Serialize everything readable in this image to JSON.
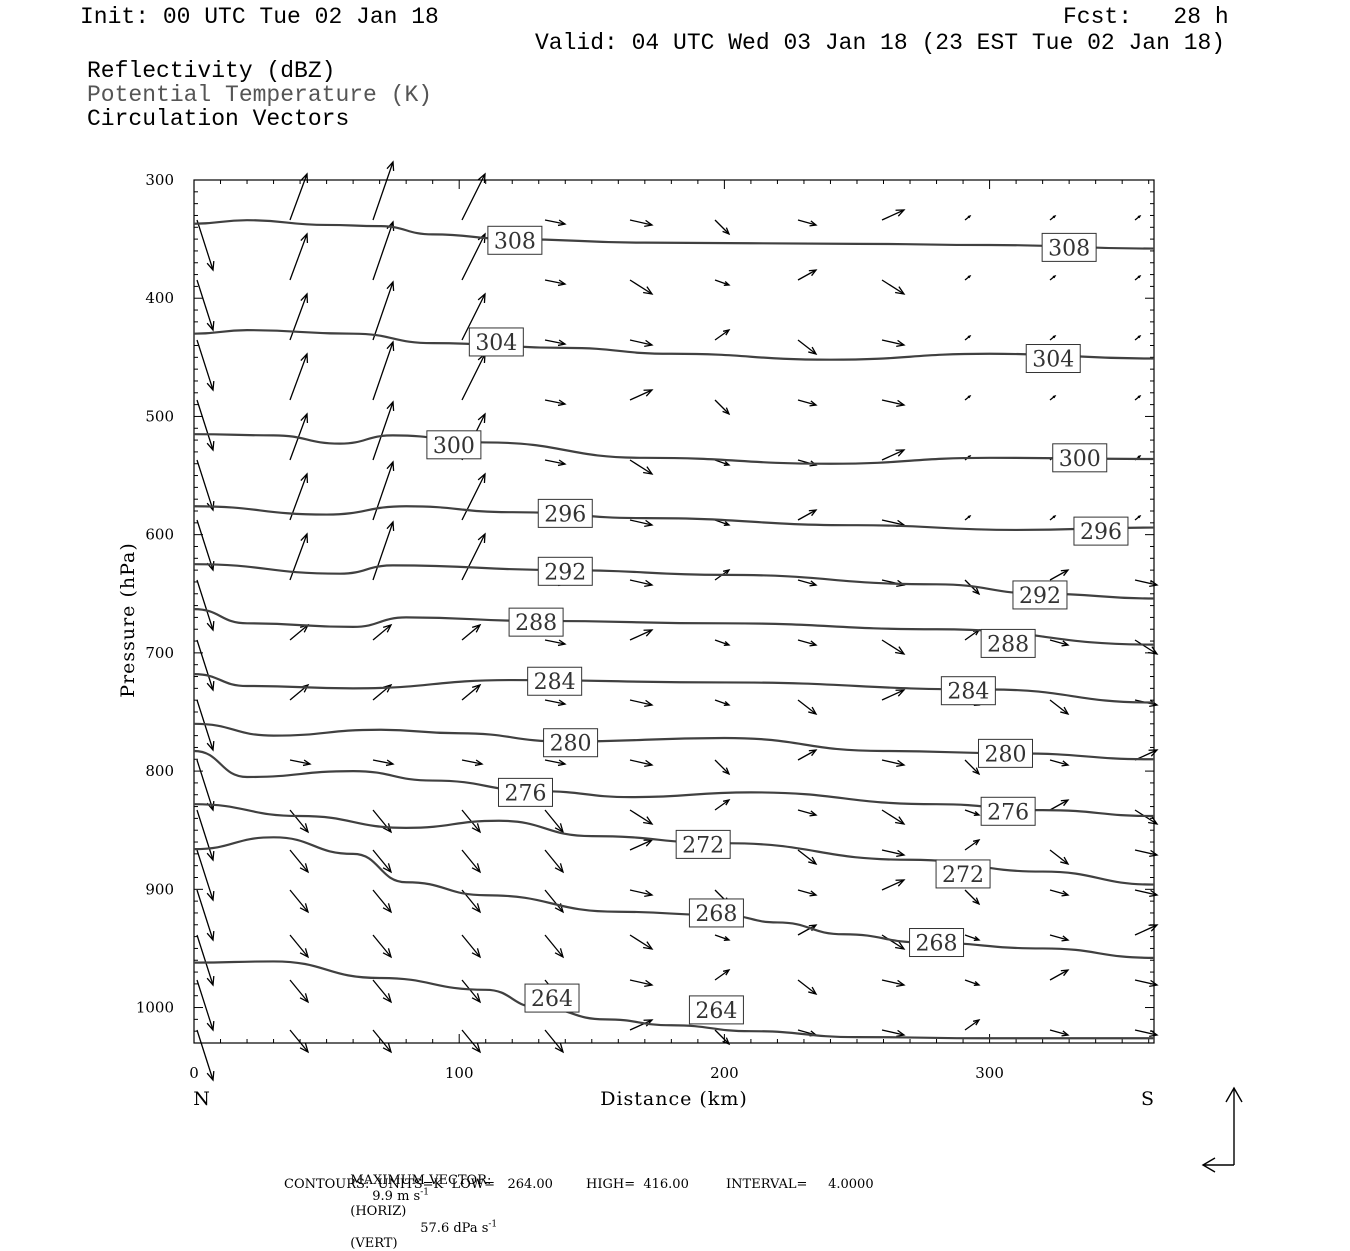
{
  "header": {
    "init": "Init: 00 UTC Tue 02 Jan 18",
    "fcst": "Fcst:   28 h",
    "valid": "Valid: 04 UTC Wed 03 Jan 18 (23 EST Tue 02 Jan 18)",
    "legend": [
      "Reflectivity (dBZ)",
      "Potential Temperature (K)",
      "Circulation Vectors"
    ]
  },
  "footer": {
    "max_vector_label": "MAXIMUM VECTOR:",
    "max_vector_horiz": "9.9 m s",
    "horiz_unit": "(HORIZ)",
    "max_vector_vert": "57.6 dPa s",
    "vert_unit": "(VERT)",
    "contours": "CONTOURS:  UNITS=K  LOW=   264.00        HIGH=  416.00         INTERVAL=     4.0000"
  },
  "colors": {
    "contour": "#404040",
    "vector": "#000000",
    "background": "#ffffff"
  },
  "chart_data": {
    "type": "cross-section contour",
    "xlabel": "Distance (km)",
    "ylabel": "Pressure (hPa)",
    "xlim": [
      0,
      362
    ],
    "ylim": [
      1030,
      300
    ],
    "x_ticks": [
      0,
      100,
      200,
      300
    ],
    "y_ticks": [
      300,
      400,
      500,
      600,
      700,
      800,
      900,
      1000
    ],
    "x_end_labels": {
      "left": "N",
      "right": "S"
    },
    "contour_levels": [
      308,
      304,
      300,
      296,
      292,
      288,
      284,
      280,
      276,
      272,
      268,
      264
    ],
    "contours": [
      {
        "level": 308,
        "points": [
          [
            0,
            337
          ],
          [
            20,
            334
          ],
          [
            50,
            338
          ],
          [
            70,
            339
          ],
          [
            90,
            346
          ],
          [
            120,
            350
          ],
          [
            170,
            353
          ],
          [
            250,
            354
          ],
          [
            300,
            355
          ],
          [
            362,
            358
          ]
        ],
        "labels": [
          [
            121,
            351
          ],
          [
            330,
            357
          ]
        ]
      },
      {
        "level": 304,
        "points": [
          [
            0,
            430
          ],
          [
            20,
            427
          ],
          [
            60,
            430
          ],
          [
            90,
            438
          ],
          [
            140,
            442
          ],
          [
            180,
            447
          ],
          [
            240,
            452
          ],
          [
            300,
            447
          ],
          [
            362,
            451
          ]
        ],
        "labels": [
          [
            114,
            437
          ],
          [
            324,
            451
          ]
        ]
      },
      {
        "level": 300,
        "points": [
          [
            0,
            515
          ],
          [
            30,
            516
          ],
          [
            55,
            523
          ],
          [
            75,
            516
          ],
          [
            110,
            522
          ],
          [
            170,
            535
          ],
          [
            240,
            540
          ],
          [
            300,
            535
          ],
          [
            362,
            536
          ]
        ],
        "labels": [
          [
            98,
            524
          ],
          [
            334,
            535
          ]
        ]
      },
      {
        "level": 296,
        "points": [
          [
            0,
            576
          ],
          [
            50,
            583
          ],
          [
            80,
            576
          ],
          [
            120,
            581
          ],
          [
            170,
            586
          ],
          [
            250,
            592
          ],
          [
            310,
            596
          ],
          [
            362,
            594
          ]
        ],
        "labels": [
          [
            140,
            582
          ],
          [
            342,
            597
          ]
        ]
      },
      {
        "level": 292,
        "points": [
          [
            0,
            625
          ],
          [
            55,
            633
          ],
          [
            75,
            626
          ],
          [
            140,
            630
          ],
          [
            200,
            634
          ],
          [
            280,
            642
          ],
          [
            320,
            650
          ],
          [
            362,
            654
          ]
        ],
        "labels": [
          [
            140,
            631
          ],
          [
            319,
            651
          ]
        ]
      },
      {
        "level": 288,
        "points": [
          [
            0,
            663
          ],
          [
            20,
            675
          ],
          [
            60,
            678
          ],
          [
            80,
            670
          ],
          [
            130,
            673
          ],
          [
            200,
            675
          ],
          [
            280,
            680
          ],
          [
            362,
            693
          ]
        ],
        "labels": [
          [
            129,
            674
          ],
          [
            307,
            692
          ]
        ]
      },
      {
        "level": 284,
        "points": [
          [
            0,
            718
          ],
          [
            20,
            728
          ],
          [
            60,
            730
          ],
          [
            120,
            723
          ],
          [
            200,
            725
          ],
          [
            300,
            731
          ],
          [
            362,
            742
          ]
        ],
        "labels": [
          [
            136,
            724
          ],
          [
            292,
            732
          ]
        ]
      },
      {
        "level": 280,
        "points": [
          [
            0,
            760
          ],
          [
            30,
            770
          ],
          [
            70,
            765
          ],
          [
            100,
            768
          ],
          [
            140,
            775
          ],
          [
            200,
            772
          ],
          [
            260,
            783
          ],
          [
            310,
            785
          ],
          [
            362,
            790
          ]
        ],
        "labels": [
          [
            142,
            776
          ],
          [
            306,
            785
          ]
        ]
      },
      {
        "level": 276,
        "points": [
          [
            0,
            783
          ],
          [
            20,
            805
          ],
          [
            60,
            800
          ],
          [
            90,
            808
          ],
          [
            130,
            817
          ],
          [
            165,
            822
          ],
          [
            210,
            818
          ],
          [
            280,
            828
          ],
          [
            320,
            833
          ],
          [
            362,
            838
          ]
        ],
        "labels": [
          [
            125,
            818
          ],
          [
            307,
            834
          ]
        ]
      },
      {
        "level": 272,
        "points": [
          [
            0,
            828
          ],
          [
            40,
            838
          ],
          [
            80,
            848
          ],
          [
            115,
            842
          ],
          [
            150,
            855
          ],
          [
            200,
            861
          ],
          [
            270,
            875
          ],
          [
            320,
            885
          ],
          [
            362,
            896
          ]
        ],
        "labels": [
          [
            192,
            862
          ],
          [
            290,
            887
          ]
        ]
      },
      {
        "level": 268,
        "points": [
          [
            0,
            866
          ],
          [
            30,
            856
          ],
          [
            60,
            870
          ],
          [
            80,
            894
          ],
          [
            110,
            905
          ],
          [
            160,
            919
          ],
          [
            200,
            922
          ],
          [
            220,
            928
          ],
          [
            245,
            938
          ],
          [
            275,
            945
          ],
          [
            320,
            950
          ],
          [
            362,
            958
          ]
        ],
        "labels": [
          [
            197,
            920
          ],
          [
            280,
            945
          ]
        ]
      },
      {
        "level": 264,
        "points": [
          [
            0,
            962
          ],
          [
            30,
            961
          ],
          [
            70,
            975
          ],
          [
            110,
            985
          ],
          [
            130,
            1000
          ],
          [
            155,
            1010
          ],
          [
            180,
            1015
          ],
          [
            210,
            1020
          ],
          [
            250,
            1025
          ],
          [
            300,
            1026
          ],
          [
            362,
            1026
          ]
        ],
        "labels": [
          [
            135,
            992
          ],
          [
            197,
            1002
          ]
        ]
      }
    ]
  }
}
